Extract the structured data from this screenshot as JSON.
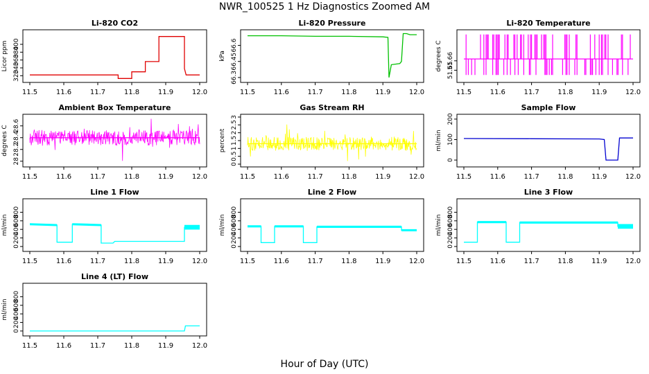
{
  "page": {
    "title": "NWR_100525  1 Hz Diagnostics Zoomed AM",
    "xlabel": "Hour of Day (UTC)"
  },
  "chart_data": [
    {
      "type": "line",
      "title": "Li-820 CO2",
      "ylabel": "Licor ppm",
      "color": "#e00000",
      "xlim": [
        11.5,
        12.0
      ],
      "ylim": [
        310,
        430
      ],
      "yticks": [
        320,
        340,
        360,
        380,
        400
      ],
      "x": [
        11.5,
        11.76,
        11.76,
        11.8,
        11.8,
        11.84,
        11.84,
        11.88,
        11.88,
        11.955,
        11.955,
        11.96,
        12.0
      ],
      "y": [
        322,
        322,
        313,
        313,
        330,
        330,
        356,
        356,
        420,
        420,
        338,
        322,
        322
      ]
    },
    {
      "type": "line",
      "title": "Li-820 Pressure",
      "ylabel": "kPa",
      "color": "#00c000",
      "xlim": [
        11.5,
        12.0
      ],
      "ylim": [
        66.28,
        66.72
      ],
      "yticks": [
        66.3,
        66.45,
        66.6
      ],
      "x": [
        11.5,
        11.6,
        11.7,
        11.8,
        11.9,
        11.915,
        11.918,
        11.925,
        11.95,
        11.955,
        11.96,
        11.97,
        11.98,
        12.0
      ],
      "y": [
        66.69,
        66.69,
        66.685,
        66.685,
        66.68,
        66.675,
        66.3,
        66.42,
        66.43,
        66.45,
        66.71,
        66.71,
        66.7,
        66.7
      ]
    },
    {
      "type": "line",
      "title": "Li-820 Temperature",
      "ylabel": "degrees C",
      "color": "#ff00ff",
      "xlim": [
        11.5,
        12.0
      ],
      "ylim": [
        51.64,
        51.69
      ],
      "yticks": [
        51.65,
        51.66
      ],
      "x": [
        11.5,
        11.55,
        11.6,
        11.65,
        11.7,
        11.75,
        11.8,
        11.85,
        11.9,
        11.95,
        12.0
      ],
      "y": [
        51.662,
        51.662,
        51.662,
        51.662,
        51.662,
        51.662,
        51.662,
        51.662,
        51.662,
        51.662,
        51.662
      ]
    },
    {
      "type": "line",
      "title": "Ambient Box Temperature",
      "ylabel": "degrees C",
      "color": "#ff00ff",
      "xlim": [
        11.5,
        12.0
      ],
      "ylim": [
        27.95,
        28.75
      ],
      "yticks": [
        28.0,
        28.2,
        28.4,
        28.6
      ],
      "x": [
        11.5,
        11.6,
        11.7,
        11.8,
        11.9,
        12.0
      ],
      "y": [
        28.4,
        28.4,
        28.4,
        28.4,
        28.4,
        28.4
      ]
    },
    {
      "type": "line",
      "title": "Gas Stream RH",
      "ylabel": "percent",
      "color": "#ffff00",
      "xlim": [
        11.5,
        12.0
      ],
      "ylim": [
        0,
        3.0
      ],
      "yticks": [
        0.0,
        0.5,
        1.0,
        1.5,
        2.0,
        2.5,
        3.0
      ],
      "x": [
        11.5,
        11.6,
        11.7,
        11.8,
        11.9,
        12.0
      ],
      "y": [
        1.3,
        1.3,
        1.3,
        1.3,
        1.3,
        1.3
      ]
    },
    {
      "type": "line",
      "title": "Sample Flow",
      "ylabel": "ml/min",
      "color": "#0000d0",
      "xlim": [
        11.5,
        12.0
      ],
      "ylim": [
        -20,
        210
      ],
      "yticks": [
        0,
        100,
        200
      ],
      "x": [
        11.5,
        11.7,
        11.9,
        11.915,
        11.92,
        11.955,
        11.96,
        12.0
      ],
      "y": [
        105,
        104,
        103,
        100,
        0,
        0,
        108,
        108
      ]
    },
    {
      "type": "line",
      "title": "Line 1 Flow",
      "ylabel": "ml/min",
      "color": "#00ffff",
      "xlim": [
        11.5,
        12.0
      ],
      "ylim": [
        -50,
        1050
      ],
      "yticks": [
        0,
        200,
        400,
        600,
        800
      ],
      "x": [
        11.5,
        11.58,
        11.58,
        11.625,
        11.625,
        11.71,
        11.71,
        11.745,
        11.75,
        11.955,
        11.955,
        12.0
      ],
      "y": [
        520,
        500,
        100,
        100,
        520,
        500,
        80,
        80,
        120,
        120,
        450,
        450
      ]
    },
    {
      "type": "line",
      "title": "Line 2 Flow",
      "ylabel": "ml/min",
      "color": "#00ffff",
      "xlim": [
        11.5,
        12.0
      ],
      "ylim": [
        -50,
        1050
      ],
      "yticks": [
        0,
        200,
        400,
        600,
        800
      ],
      "x": [
        11.5,
        11.54,
        11.54,
        11.58,
        11.58,
        11.665,
        11.665,
        11.705,
        11.705,
        11.955,
        11.955,
        12.0
      ],
      "y": [
        470,
        470,
        90,
        90,
        470,
        470,
        90,
        90,
        460,
        460,
        380,
        380
      ]
    },
    {
      "type": "line",
      "title": "Line 3 Flow",
      "ylabel": "ml/min",
      "color": "#00ffff",
      "xlim": [
        11.5,
        12.0
      ],
      "ylim": [
        -50,
        1050
      ],
      "yticks": [
        0,
        200,
        400,
        600,
        800
      ],
      "x": [
        11.5,
        11.54,
        11.54,
        11.625,
        11.625,
        11.665,
        11.665,
        11.955,
        11.955,
        12.0
      ],
      "y": [
        100,
        100,
        570,
        570,
        100,
        100,
        560,
        560,
        470,
        470
      ]
    },
    {
      "type": "line",
      "title": "Line 4 (LT) Flow",
      "ylabel": "ml/min",
      "color": "#00ffff",
      "xlim": [
        11.5,
        12.0
      ],
      "ylim": [
        -50,
        1050
      ],
      "yticks": [
        0,
        200,
        400,
        600,
        800
      ],
      "x": [
        11.5,
        11.955,
        11.958,
        12.0
      ],
      "y": [
        0,
        0,
        120,
        120
      ]
    }
  ],
  "xticks": [
    "11.5",
    "11.6",
    "11.7",
    "11.8",
    "11.9",
    "12.0"
  ]
}
